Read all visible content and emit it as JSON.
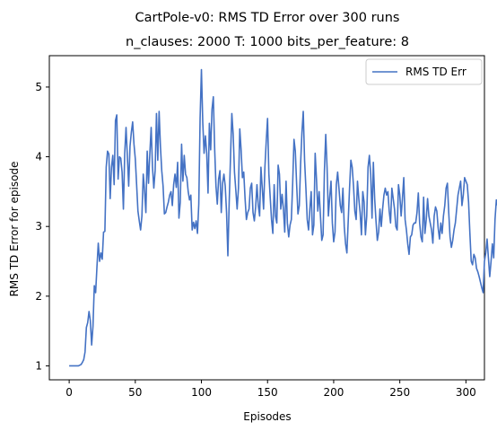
{
  "chart_data": {
    "type": "line",
    "title": "CartPole-v0: RMS TD Error over 300 runs",
    "subtitle": "n_clauses: 2000 T: 1000 bits_per_feature: 8",
    "xlabel": "Episodes",
    "ylabel": "RMS TD Error for episode",
    "xlim": [
      -15,
      314
    ],
    "ylim": [
      0.8,
      5.45
    ],
    "xticks": [
      0,
      50,
      100,
      150,
      200,
      250,
      300
    ],
    "yticks": [
      1,
      2,
      3,
      4,
      5
    ],
    "grid": false,
    "legend_position": "top-right",
    "series": [
      {
        "name": "RMS TD Err",
        "color": "#4472c4",
        "x_start": 0,
        "x_step": 1,
        "values": [
          1.0,
          1.0,
          1.0,
          1.0,
          1.0,
          1.0,
          1.0,
          1.0,
          1.01,
          1.02,
          1.05,
          1.09,
          1.2,
          1.55,
          1.62,
          1.78,
          1.65,
          1.3,
          1.57,
          2.15,
          2.05,
          2.42,
          2.76,
          2.5,
          2.62,
          2.53,
          2.92,
          2.93,
          3.85,
          4.08,
          4.04,
          3.4,
          3.85,
          4.02,
          3.6,
          4.52,
          4.6,
          3.68,
          4.0,
          3.98,
          3.78,
          3.25,
          4.05,
          4.42,
          4.0,
          3.58,
          4.15,
          4.35,
          4.5,
          4.18,
          3.97,
          3.6,
          3.22,
          3.08,
          2.95,
          3.15,
          3.75,
          3.52,
          3.2,
          4.08,
          3.62,
          4.05,
          4.42,
          3.85,
          3.55,
          3.8,
          4.62,
          3.95,
          4.65,
          4.15,
          3.8,
          3.58,
          3.18,
          3.2,
          3.28,
          3.35,
          3.45,
          3.5,
          3.3,
          3.6,
          3.75,
          3.56,
          3.92,
          3.12,
          3.35,
          4.18,
          3.65,
          4.02,
          3.75,
          3.7,
          3.5,
          3.38,
          3.45,
          2.95,
          3.06,
          2.97,
          3.08,
          2.9,
          3.32,
          4.55,
          5.25,
          4.5,
          4.05,
          4.3,
          4.05,
          3.48,
          4.48,
          4.1,
          4.68,
          4.86,
          4.12,
          3.58,
          3.32,
          3.68,
          3.8,
          3.2,
          3.62,
          3.75,
          3.58,
          3.2,
          2.58,
          3.35,
          4.0,
          4.62,
          4.32,
          3.78,
          3.52,
          3.25,
          3.55,
          4.4,
          4.1,
          3.7,
          3.78,
          3.4,
          3.1,
          3.2,
          3.25,
          3.55,
          3.62,
          3.2,
          3.08,
          3.28,
          3.6,
          3.3,
          3.15,
          3.85,
          3.55,
          3.25,
          3.85,
          4.22,
          4.55,
          3.75,
          3.42,
          3.1,
          2.9,
          3.6,
          3.15,
          3.05,
          3.88,
          3.75,
          3.25,
          3.46,
          3.25,
          2.92,
          3.65,
          3.05,
          2.85,
          3.02,
          3.1,
          3.62,
          4.25,
          4.08,
          3.6,
          3.18,
          3.3,
          3.9,
          4.35,
          4.65,
          3.95,
          3.55,
          3.1,
          2.95,
          3.25,
          3.5,
          2.88,
          3.02,
          4.05,
          3.68,
          3.22,
          3.5,
          3.15,
          2.8,
          2.88,
          3.8,
          4.32,
          3.85,
          3.15,
          3.42,
          3.65,
          3.05,
          2.78,
          2.92,
          3.6,
          3.78,
          3.55,
          3.3,
          3.2,
          3.55,
          3.0,
          2.75,
          2.62,
          3.08,
          3.55,
          3.95,
          3.85,
          3.58,
          3.22,
          3.1,
          3.65,
          3.4,
          3.2,
          2.88,
          3.5,
          3.35,
          2.88,
          3.15,
          3.85,
          4.02,
          3.75,
          3.12,
          3.92,
          3.4,
          3.08,
          2.8,
          2.92,
          3.25,
          3.0,
          3.25,
          3.45,
          3.55,
          3.45,
          3.5,
          3.22,
          3.05,
          3.55,
          3.4,
          3.25,
          3.0,
          2.95,
          3.6,
          3.45,
          3.15,
          3.4,
          3.7,
          3.1,
          2.95,
          2.75,
          2.6,
          2.85,
          2.88,
          3.02,
          3.05,
          3.05,
          3.2,
          3.48,
          3.05,
          2.85,
          2.78,
          3.42,
          2.9,
          3.1,
          3.4,
          3.15,
          3.05,
          2.95,
          2.76,
          3.15,
          3.28,
          3.22,
          2.98,
          2.82,
          3.05,
          2.9,
          3.15,
          3.3,
          3.55,
          3.62,
          3.2,
          2.85,
          2.7,
          2.8,
          2.95,
          3.05,
          3.25,
          3.45,
          3.55,
          3.65,
          3.3,
          3.45,
          3.7,
          3.65,
          3.6,
          3.35,
          2.9,
          2.5,
          2.45,
          2.6,
          2.55,
          2.4,
          2.35,
          2.28,
          2.2,
          2.12,
          2.05,
          2.5,
          2.62,
          2.82,
          2.55,
          2.28,
          2.5,
          2.75,
          2.55,
          3.1,
          3.38,
          3.3,
          3.15,
          3.05
        ]
      }
    ]
  }
}
